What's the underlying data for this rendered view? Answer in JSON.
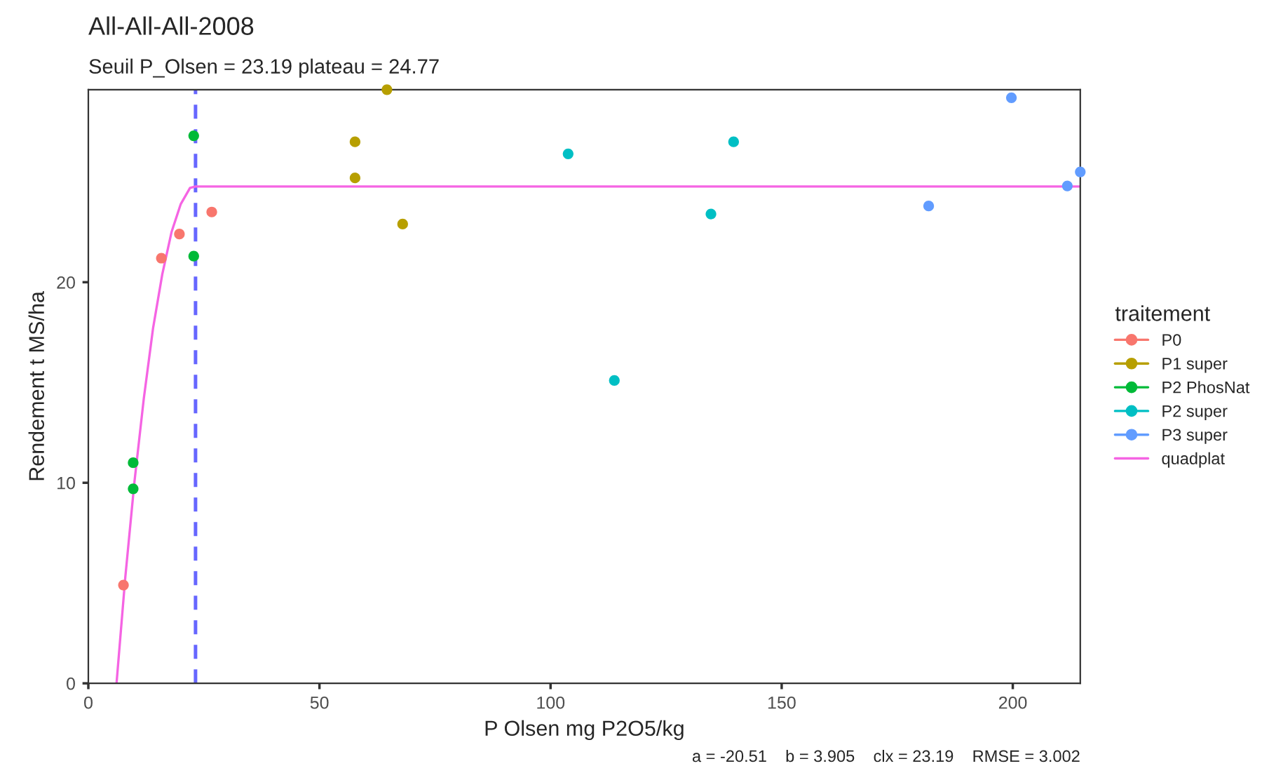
{
  "chart_data": {
    "type": "scatter",
    "title": "All-All-All-2008",
    "subtitle": "Seuil P_Olsen = 23.19 plateau = 24.77",
    "xlabel": "P Olsen mg P2O5/kg",
    "ylabel": "Rendement t MS/ha",
    "legend_title": "traitement",
    "annotations": [
      "a = -20.51    b = 3.905    clx = 23.19    RMSE = 3.002"
    ],
    "series": [
      {
        "name": "P0",
        "color": "#f8766d",
        "marker": "circle",
        "x": [
          7.6,
          15.8,
          19.7,
          26.7
        ],
        "values": [
          4.9,
          21.2,
          22.4,
          23.5
        ]
      },
      {
        "name": "P1 super",
        "color": "#b79f00",
        "marker": "circle",
        "x": [
          57.7,
          57.7,
          64.6,
          68.0
        ],
        "values": [
          27.0,
          25.2,
          29.6,
          22.9
        ]
      },
      {
        "name": "P2 PhosNat",
        "color": "#00ba38",
        "marker": "circle",
        "x": [
          22.8,
          22.8,
          9.7,
          9.7
        ],
        "values": [
          27.3,
          21.3,
          11.0,
          9.7
        ]
      },
      {
        "name": "P2 super",
        "color": "#00bfc4",
        "marker": "circle",
        "x": [
          103.8,
          113.8,
          134.7,
          139.6
        ],
        "values": [
          26.4,
          15.1,
          23.4,
          27.0
        ]
      },
      {
        "name": "P3 super",
        "color": "#619cff",
        "marker": "circle",
        "x": [
          181.8,
          199.7,
          211.8,
          214.6
        ],
        "values": [
          23.8,
          29.2,
          24.8,
          25.5
        ]
      },
      {
        "name": "quadplat",
        "type": "line",
        "color": "#f564e3",
        "x": [
          6.1,
          8,
          10,
          12,
          14,
          16,
          18,
          20,
          22,
          23.19,
          214.6
        ],
        "values": [
          0,
          5.3,
          10.1,
          14.2,
          17.7,
          20.4,
          22.5,
          23.9,
          24.7,
          24.77,
          24.77
        ]
      }
    ],
    "ref_lines": [
      {
        "axis": "x",
        "value": 23.19,
        "label": null,
        "color": "#6666ff",
        "line_style": "dashed"
      }
    ],
    "xlim": [
      0,
      214.6
    ],
    "ylim": [
      0,
      29.6
    ],
    "xticks": [
      0,
      50,
      100,
      150,
      200
    ],
    "yticks": [
      0,
      10,
      20
    ],
    "legend": "right"
  }
}
